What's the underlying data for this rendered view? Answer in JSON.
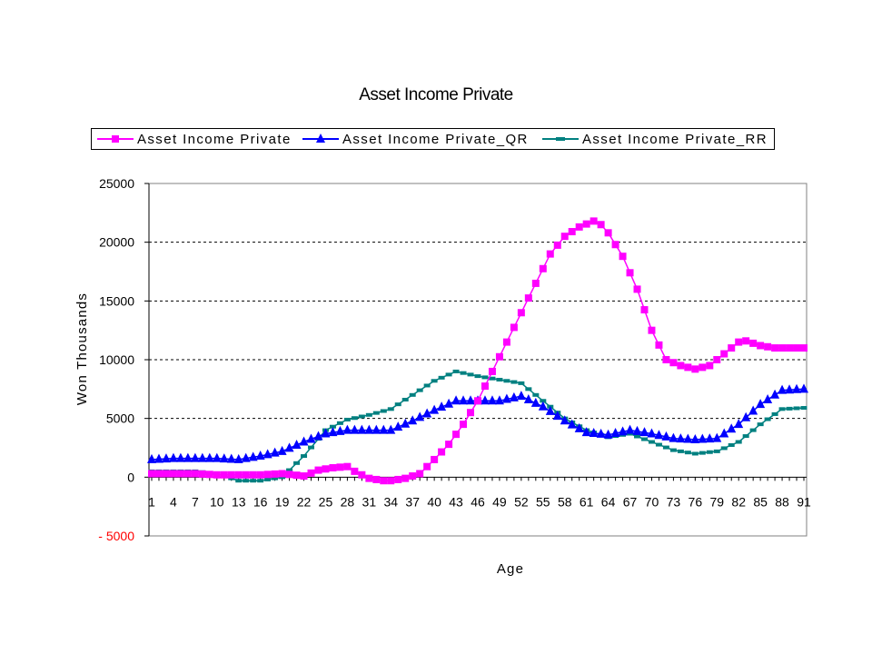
{
  "chart_data": {
    "type": "line",
    "title": "Asset Income Private",
    "xlabel": "Age",
    "ylabel": "Won Thousands",
    "ylim": [
      -5000,
      25000
    ],
    "yticks": [
      -5000,
      0,
      5000,
      10000,
      15000,
      20000,
      25000
    ],
    "xlim": [
      1,
      91
    ],
    "xtick_labels": [
      "1",
      "4",
      "7",
      "10",
      "13",
      "16",
      "19",
      "22",
      "25",
      "28",
      "31",
      "34",
      "37",
      "40",
      "43",
      "46",
      "49",
      "52",
      "55",
      "58",
      "61",
      "64",
      "67",
      "70",
      "73",
      "76",
      "79",
      "82",
      "85",
      "88",
      "91"
    ],
    "grid": "horizontal-dashed",
    "legend_position": "top",
    "negative_tick_color": "#ff0000",
    "series": [
      {
        "name": "Asset Income Private",
        "color": "#ff00ff",
        "marker": "square",
        "x": [
          1,
          4,
          7,
          10,
          13,
          16,
          19,
          22,
          24,
          26,
          28,
          29,
          31,
          33,
          34,
          36,
          38,
          40,
          42,
          44,
          46,
          48,
          50,
          52,
          54,
          56,
          58,
          60,
          62,
          63,
          64,
          66,
          68,
          70,
          72,
          74,
          76,
          78,
          80,
          82,
          83,
          85,
          87,
          89,
          91
        ],
        "values": [
          300,
          300,
          300,
          200,
          200,
          200,
          300,
          100,
          600,
          800,
          900,
          500,
          -100,
          -300,
          -300,
          -100,
          300,
          1500,
          2800,
          4500,
          6500,
          9000,
          11500,
          14000,
          16500,
          19000,
          20500,
          21300,
          21800,
          21500,
          20800,
          18800,
          16000,
          12500,
          10000,
          9500,
          9200,
          9500,
          10500,
          11500,
          11600,
          11200,
          11000,
          11000,
          11000
        ]
      },
      {
        "name": "Asset Income Private_QR",
        "color": "#0000ff",
        "marker": "triangle",
        "x": [
          1,
          4,
          7,
          10,
          13,
          16,
          19,
          22,
          25,
          28,
          31,
          34,
          37,
          40,
          43,
          46,
          49,
          52,
          55,
          58,
          61,
          64,
          67,
          70,
          73,
          76,
          79,
          82,
          85,
          88,
          91
        ],
        "values": [
          1500,
          1600,
          1600,
          1600,
          1500,
          1800,
          2200,
          3000,
          3700,
          4000,
          4000,
          4000,
          4800,
          5700,
          6500,
          6500,
          6500,
          6900,
          6000,
          4800,
          3800,
          3600,
          4000,
          3700,
          3300,
          3200,
          3300,
          4500,
          6200,
          7400,
          7500
        ]
      },
      {
        "name": "Asset Income Private_RR",
        "color": "#008080",
        "marker": "dash",
        "x": [
          1,
          4,
          7,
          10,
          13,
          16,
          19,
          22,
          25,
          28,
          31,
          34,
          37,
          40,
          43,
          46,
          49,
          52,
          55,
          58,
          61,
          64,
          67,
          70,
          73,
          76,
          79,
          82,
          85,
          88,
          91
        ],
        "values": [
          500,
          500,
          500,
          300,
          -300,
          -300,
          0,
          1800,
          4000,
          4900,
          5300,
          5800,
          7000,
          8200,
          9000,
          8600,
          8300,
          8000,
          6500,
          5000,
          4000,
          3400,
          3700,
          3000,
          2300,
          2000,
          2200,
          3000,
          4500,
          5800,
          5900
        ]
      }
    ]
  }
}
